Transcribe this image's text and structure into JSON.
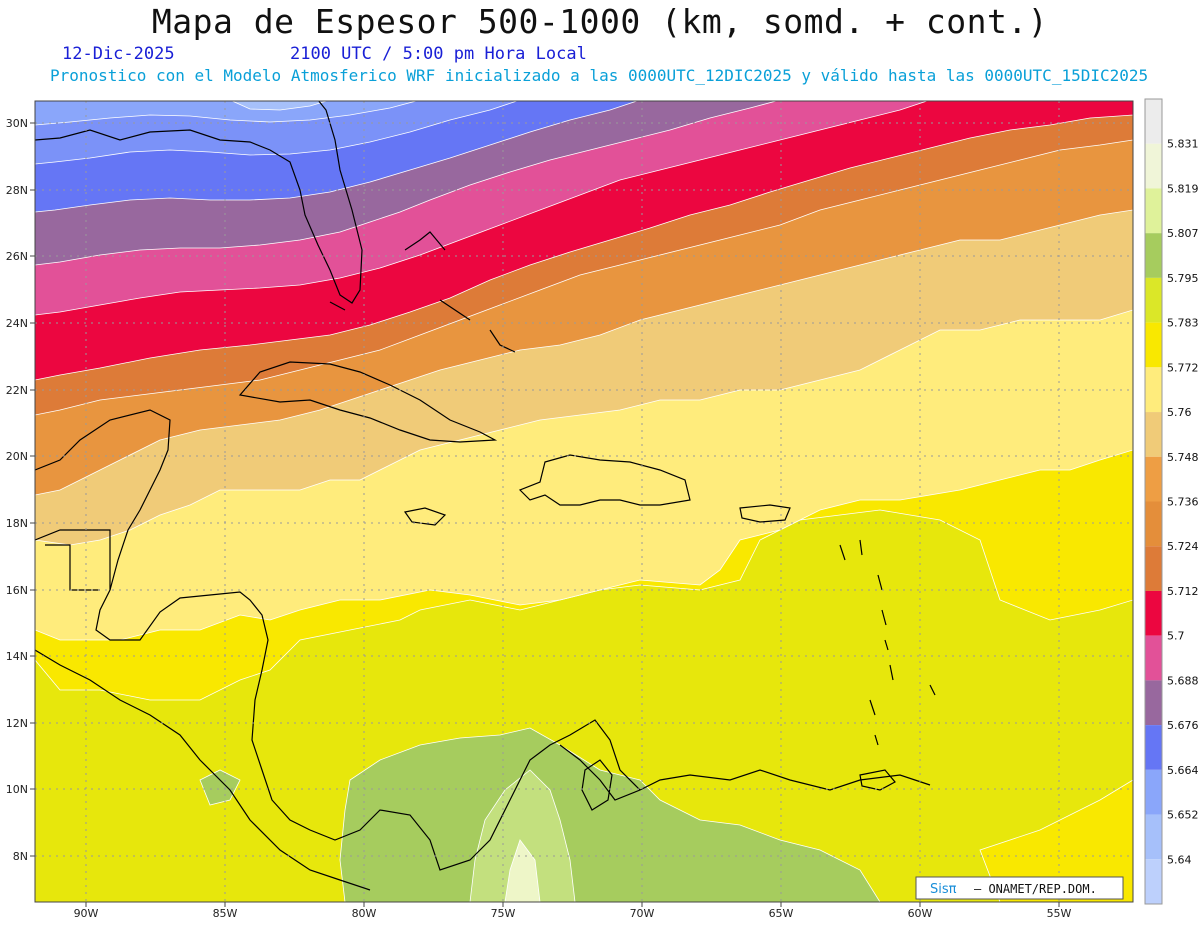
{
  "header": {
    "title": "Mapa de Espesor 500-1000 (km, somd. + cont.)",
    "date": "12-Dic-2025",
    "valid_time": "2100 UTC / 5:00 pm Hora Local",
    "description": "Pronostico con el Modelo Atmosferico WRF inicializado a las 0000UTC_12DIC2025 y válido hasta las  0000UTC_15DIC2025"
  },
  "axes": {
    "lat_labels": [
      "30N",
      "28N",
      "26N",
      "24N",
      "22N",
      "20N",
      "18N",
      "16N",
      "14N",
      "12N",
      "10N",
      "8N"
    ],
    "lon_labels": [
      "90W",
      "85W",
      "80W",
      "75W",
      "70W",
      "65W",
      "60W",
      "55W"
    ]
  },
  "colorbar": {
    "labels": [
      "5.831",
      "5.819",
      "5.807",
      "5.795",
      "5.783",
      "5.772",
      "5.76",
      "5.748",
      "5.736",
      "5.724",
      "5.712",
      "5.7",
      "5.688",
      "5.676",
      "5.664",
      "5.652",
      "5.64"
    ],
    "colors": [
      "#ececec",
      "#f0f5d8",
      "#dff29a",
      "#a6cc5e",
      "#dbe728",
      "#f9e800",
      "#ffec7c",
      "#f0cb78",
      "#ee9e44",
      "#e48e3a",
      "#dd7b38",
      "#ec0640",
      "#e25198",
      "#98689e",
      "#6576f5",
      "#8aa6fa",
      "#a6c0fa",
      "#bdd0fc"
    ]
  },
  "credit": {
    "brand": "Sisπ",
    "text": "– ONAMET/REP.DOM."
  }
}
